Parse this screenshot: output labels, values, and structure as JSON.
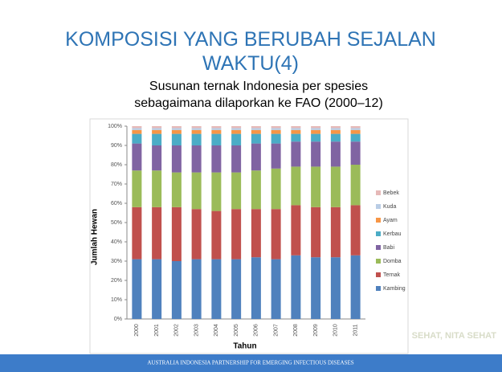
{
  "title": "KOMPOSISI YANG BERUBAH SEJALAN WAKTU(4)",
  "subtitle": "Susunan ternak Indonesia per spesies sebagaimana dilaporkan ke FAO (2000–12)",
  "watermark": "SEHAT, NITA SEHAT",
  "footer": "AUSTRALIA INDONESIA PARTNERSHIP FOR EMERGING INFECTIOUS DISEASES",
  "chart_data": {
    "type": "stacked_bar",
    "y_label": "Jumlah Hewan",
    "x_label": "Tahun",
    "categories": [
      "2000",
      "2001",
      "2002",
      "2003",
      "2004",
      "2005",
      "2006",
      "2007",
      "2008",
      "2009",
      "2010",
      "2011"
    ],
    "ylim": [
      0,
      100
    ],
    "yticks": [
      {
        "value": 0,
        "label": "0%"
      },
      {
        "value": 10,
        "label": "10%"
      },
      {
        "value": 20,
        "label": "20%"
      },
      {
        "value": 30,
        "label": "30%"
      },
      {
        "value": 40,
        "label": "40%"
      },
      {
        "value": 50,
        "label": "50%"
      },
      {
        "value": 60,
        "label": "60%"
      },
      {
        "value": 70,
        "label": "70%"
      },
      {
        "value": 80,
        "label": "80%"
      },
      {
        "value": 90,
        "label": "90%"
      },
      {
        "value": 100,
        "label": "100%"
      }
    ],
    "series": [
      {
        "name": "Kambing",
        "color": "#4f81bd",
        "values": [
          31,
          31,
          30,
          31,
          31,
          31,
          32,
          31,
          33,
          32,
          32,
          33
        ]
      },
      {
        "name": "Ternak",
        "color": "#c0504d",
        "values": [
          27,
          27,
          28,
          26,
          25,
          26,
          25,
          26,
          26,
          26,
          26,
          26
        ]
      },
      {
        "name": "Domba",
        "color": "#9bbb59",
        "values": [
          19,
          19,
          18,
          19,
          20,
          19,
          20,
          21,
          20,
          21,
          21,
          21
        ]
      },
      {
        "name": "Babi",
        "color": "#8064a2",
        "values": [
          14,
          13,
          14,
          14,
          14,
          14,
          14,
          13,
          13,
          13,
          13,
          12
        ]
      },
      {
        "name": "Kerbau",
        "color": "#4bacc6",
        "values": [
          5,
          6,
          6,
          6,
          6,
          6,
          5,
          5,
          4,
          4,
          4,
          4
        ]
      },
      {
        "name": "Ayam",
        "color": "#f79646",
        "values": [
          2,
          2,
          2,
          2,
          2,
          2,
          2,
          2,
          2,
          2,
          2,
          2
        ]
      },
      {
        "name": "Kuda",
        "color": "#b9cde5",
        "values": [
          1,
          1,
          1,
          1,
          1,
          1,
          1,
          1,
          1,
          1,
          1,
          1
        ]
      },
      {
        "name": "Bebek",
        "color": "#e6b9b8",
        "values": [
          1,
          1,
          1,
          1,
          1,
          1,
          1,
          1,
          1,
          1,
          1,
          1
        ]
      }
    ]
  }
}
